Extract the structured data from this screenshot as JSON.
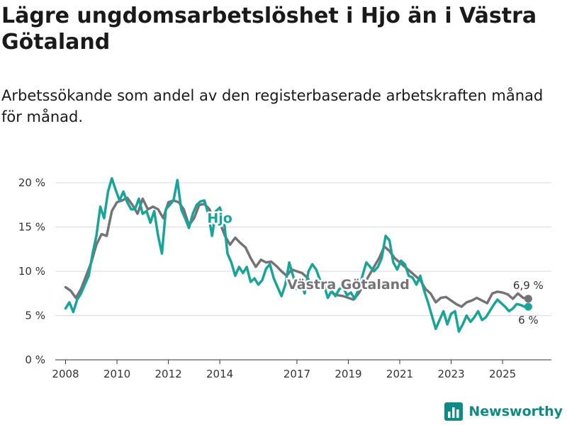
{
  "header": {
    "title": "Lägre ungdomsarbetslöshet i Hjo än i Västra Götaland",
    "subtitle": "Arbetssökande som andel av den registerbaserade arbetskraften månad för månad."
  },
  "brand": {
    "name": "Newsworthy",
    "icon": "bar-chart-icon",
    "color": "#0f8a84"
  },
  "chart_data": {
    "type": "line",
    "title": "Lägre ungdomsarbetslöshet i Hjo än i Västra Götaland",
    "subtitle": "Arbetssökande som andel av den registerbaserade arbetskraften månad för månad.",
    "xlabel": "",
    "ylabel": "",
    "xlim": [
      2007.6,
      2026.9
    ],
    "ylim": [
      0,
      20
    ],
    "grid": "horizontal",
    "y_ticks": [
      0,
      5,
      10,
      15,
      20
    ],
    "y_tick_labels": [
      "0 %",
      "5 %",
      "10 %",
      "15 %",
      "20 %"
    ],
    "x_ticks": [
      2008,
      2010,
      2012,
      2014,
      2017,
      2019,
      2021,
      2023,
      2025
    ],
    "x_tick_labels": [
      "2008",
      "2010",
      "2012",
      "2014",
      "2017",
      "2019",
      "2021",
      "2023",
      "2025"
    ],
    "series": [
      {
        "name": "Västra Götaland",
        "color": "#757278",
        "end_label": "6,9 %",
        "points": [
          [
            2008.0,
            8.2
          ],
          [
            2008.2,
            7.8
          ],
          [
            2008.4,
            7.0
          ],
          [
            2008.6,
            8.0
          ],
          [
            2008.8,
            9.5
          ],
          [
            2009.0,
            11.0
          ],
          [
            2009.2,
            13.0
          ],
          [
            2009.4,
            14.2
          ],
          [
            2009.6,
            14.0
          ],
          [
            2009.8,
            16.8
          ],
          [
            2010.0,
            17.8
          ],
          [
            2010.2,
            18.0
          ],
          [
            2010.4,
            18.3
          ],
          [
            2010.6,
            17.5
          ],
          [
            2010.8,
            16.5
          ],
          [
            2011.0,
            18.2
          ],
          [
            2011.2,
            17.0
          ],
          [
            2011.4,
            17.3
          ],
          [
            2011.6,
            17.0
          ],
          [
            2011.8,
            16.0
          ],
          [
            2012.0,
            17.8
          ],
          [
            2012.2,
            18.0
          ],
          [
            2012.4,
            17.8
          ],
          [
            2012.6,
            17.0
          ],
          [
            2012.8,
            15.2
          ],
          [
            2013.0,
            16.0
          ],
          [
            2013.2,
            17.5
          ],
          [
            2013.4,
            17.6
          ],
          [
            2013.6,
            17.0
          ],
          [
            2013.8,
            15.5
          ],
          [
            2014.0,
            15.5
          ],
          [
            2014.2,
            14.0
          ],
          [
            2014.4,
            13.0
          ],
          [
            2014.6,
            13.8
          ],
          [
            2014.8,
            13.2
          ],
          [
            2015.0,
            12.7
          ],
          [
            2015.2,
            11.5
          ],
          [
            2015.4,
            10.5
          ],
          [
            2015.6,
            11.3
          ],
          [
            2015.8,
            11.0
          ],
          [
            2016.0,
            11.1
          ],
          [
            2016.2,
            10.6
          ],
          [
            2016.4,
            10.0
          ],
          [
            2016.6,
            9.5
          ],
          [
            2016.8,
            10.2
          ],
          [
            2017.0,
            10.0
          ],
          [
            2017.2,
            9.8
          ],
          [
            2017.4,
            9.3
          ],
          [
            2017.6,
            8.5
          ],
          [
            2017.8,
            9.0
          ],
          [
            2018.0,
            8.6
          ],
          [
            2018.2,
            8.4
          ],
          [
            2018.4,
            7.5
          ],
          [
            2018.6,
            7.3
          ],
          [
            2018.8,
            7.2
          ],
          [
            2019.0,
            7.0
          ],
          [
            2019.2,
            6.8
          ],
          [
            2019.4,
            7.5
          ],
          [
            2019.6,
            8.5
          ],
          [
            2019.8,
            9.5
          ],
          [
            2020.0,
            10.5
          ],
          [
            2020.2,
            11.5
          ],
          [
            2020.4,
            12.8
          ],
          [
            2020.6,
            12.3
          ],
          [
            2020.8,
            11.5
          ],
          [
            2021.0,
            11.0
          ],
          [
            2021.2,
            10.5
          ],
          [
            2021.4,
            10.0
          ],
          [
            2021.6,
            9.5
          ],
          [
            2021.8,
            9.0
          ],
          [
            2022.0,
            8.0
          ],
          [
            2022.2,
            7.5
          ],
          [
            2022.4,
            6.5
          ],
          [
            2022.6,
            7.0
          ],
          [
            2022.8,
            7.1
          ],
          [
            2023.0,
            6.7
          ],
          [
            2023.2,
            6.3
          ],
          [
            2023.4,
            6.0
          ],
          [
            2023.6,
            6.5
          ],
          [
            2023.8,
            6.7
          ],
          [
            2024.0,
            7.0
          ],
          [
            2024.2,
            6.7
          ],
          [
            2024.4,
            6.4
          ],
          [
            2024.6,
            7.5
          ],
          [
            2024.8,
            7.7
          ],
          [
            2025.0,
            7.6
          ],
          [
            2025.2,
            7.4
          ],
          [
            2025.4,
            6.9
          ],
          [
            2025.6,
            7.5
          ],
          [
            2025.8,
            7.0
          ],
          [
            2026.0,
            6.9
          ]
        ]
      },
      {
        "name": "Hjo",
        "color": "#18a499",
        "end_label": "6 %",
        "points": [
          [
            2008.0,
            5.8
          ],
          [
            2008.15,
            6.5
          ],
          [
            2008.3,
            5.4
          ],
          [
            2008.45,
            6.8
          ],
          [
            2008.6,
            7.5
          ],
          [
            2008.75,
            8.5
          ],
          [
            2008.9,
            9.5
          ],
          [
            2009.05,
            12.0
          ],
          [
            2009.2,
            14.0
          ],
          [
            2009.35,
            17.3
          ],
          [
            2009.5,
            16.0
          ],
          [
            2009.65,
            19.0
          ],
          [
            2009.8,
            20.5
          ],
          [
            2009.95,
            19.2
          ],
          [
            2010.1,
            18.0
          ],
          [
            2010.25,
            19.0
          ],
          [
            2010.4,
            17.8
          ],
          [
            2010.55,
            17.0
          ],
          [
            2010.7,
            17.0
          ],
          [
            2010.85,
            18.2
          ],
          [
            2011.0,
            16.5
          ],
          [
            2011.15,
            16.8
          ],
          [
            2011.3,
            15.5
          ],
          [
            2011.45,
            16.8
          ],
          [
            2011.6,
            14.0
          ],
          [
            2011.75,
            12.0
          ],
          [
            2011.9,
            17.0
          ],
          [
            2012.05,
            17.5
          ],
          [
            2012.2,
            18.0
          ],
          [
            2012.35,
            20.3
          ],
          [
            2012.5,
            17.0
          ],
          [
            2012.65,
            16.0
          ],
          [
            2012.8,
            14.9
          ],
          [
            2012.95,
            16.5
          ],
          [
            2013.1,
            17.5
          ],
          [
            2013.25,
            17.9
          ],
          [
            2013.4,
            18.0
          ],
          [
            2013.55,
            16.5
          ],
          [
            2013.7,
            14.0
          ],
          [
            2013.85,
            16.8
          ],
          [
            2014.0,
            17.2
          ],
          [
            2014.15,
            16.0
          ],
          [
            2014.3,
            12.0
          ],
          [
            2014.45,
            11.0
          ],
          [
            2014.6,
            9.5
          ],
          [
            2014.75,
            10.5
          ],
          [
            2014.9,
            9.8
          ],
          [
            2015.05,
            10.5
          ],
          [
            2015.2,
            8.8
          ],
          [
            2015.35,
            9.2
          ],
          [
            2015.5,
            8.5
          ],
          [
            2015.65,
            9.0
          ],
          [
            2015.8,
            10.3
          ],
          [
            2015.95,
            10.8
          ],
          [
            2016.1,
            9.2
          ],
          [
            2016.25,
            8.2
          ],
          [
            2016.4,
            7.2
          ],
          [
            2016.55,
            8.5
          ],
          [
            2016.7,
            11.0
          ],
          [
            2016.85,
            9.5
          ],
          [
            2017.0,
            8.0
          ],
          [
            2017.15,
            8.8
          ],
          [
            2017.3,
            7.5
          ],
          [
            2017.45,
            10.0
          ],
          [
            2017.6,
            10.8
          ],
          [
            2017.75,
            10.2
          ],
          [
            2017.9,
            9.0
          ],
          [
            2018.05,
            8.5
          ],
          [
            2018.2,
            7.0
          ],
          [
            2018.35,
            7.8
          ],
          [
            2018.5,
            7.2
          ],
          [
            2018.65,
            8.0
          ],
          [
            2018.8,
            8.2
          ],
          [
            2018.95,
            7.3
          ],
          [
            2019.1,
            7.6
          ],
          [
            2019.25,
            6.9
          ],
          [
            2019.4,
            8.0
          ],
          [
            2019.55,
            9.5
          ],
          [
            2019.7,
            11.0
          ],
          [
            2019.85,
            10.5
          ],
          [
            2020.0,
            10.0
          ],
          [
            2020.15,
            10.5
          ],
          [
            2020.3,
            11.5
          ],
          [
            2020.45,
            14.0
          ],
          [
            2020.6,
            13.5
          ],
          [
            2020.75,
            11.0
          ],
          [
            2020.9,
            10.2
          ],
          [
            2021.05,
            11.2
          ],
          [
            2021.2,
            10.8
          ],
          [
            2021.35,
            9.5
          ],
          [
            2021.5,
            9.3
          ],
          [
            2021.65,
            8.5
          ],
          [
            2021.8,
            9.5
          ],
          [
            2021.95,
            7.8
          ],
          [
            2022.1,
            6.5
          ],
          [
            2022.25,
            5.0
          ],
          [
            2022.4,
            3.5
          ],
          [
            2022.55,
            4.5
          ],
          [
            2022.7,
            5.5
          ],
          [
            2022.85,
            4.0
          ],
          [
            2023.0,
            5.2
          ],
          [
            2023.15,
            5.5
          ],
          [
            2023.3,
            3.2
          ],
          [
            2023.45,
            4.0
          ],
          [
            2023.6,
            5.0
          ],
          [
            2023.75,
            4.3
          ],
          [
            2023.9,
            4.8
          ],
          [
            2024.05,
            5.5
          ],
          [
            2024.2,
            4.5
          ],
          [
            2024.35,
            4.8
          ],
          [
            2024.5,
            5.5
          ],
          [
            2024.65,
            6.2
          ],
          [
            2024.8,
            6.8
          ],
          [
            2024.95,
            6.4
          ],
          [
            2025.1,
            6.0
          ],
          [
            2025.25,
            5.5
          ],
          [
            2025.4,
            5.8
          ],
          [
            2025.55,
            6.3
          ],
          [
            2025.7,
            6.2
          ],
          [
            2025.85,
            6.0
          ],
          [
            2026.0,
            6.0
          ]
        ]
      }
    ],
    "annotations": [
      {
        "text": "Hjo",
        "series": "Hjo",
        "at": [
          2014.0,
          15.5
        ]
      },
      {
        "text": "Västra Götaland",
        "series": "Västra Götaland",
        "at": [
          2019.0,
          8.0
        ]
      }
    ]
  }
}
